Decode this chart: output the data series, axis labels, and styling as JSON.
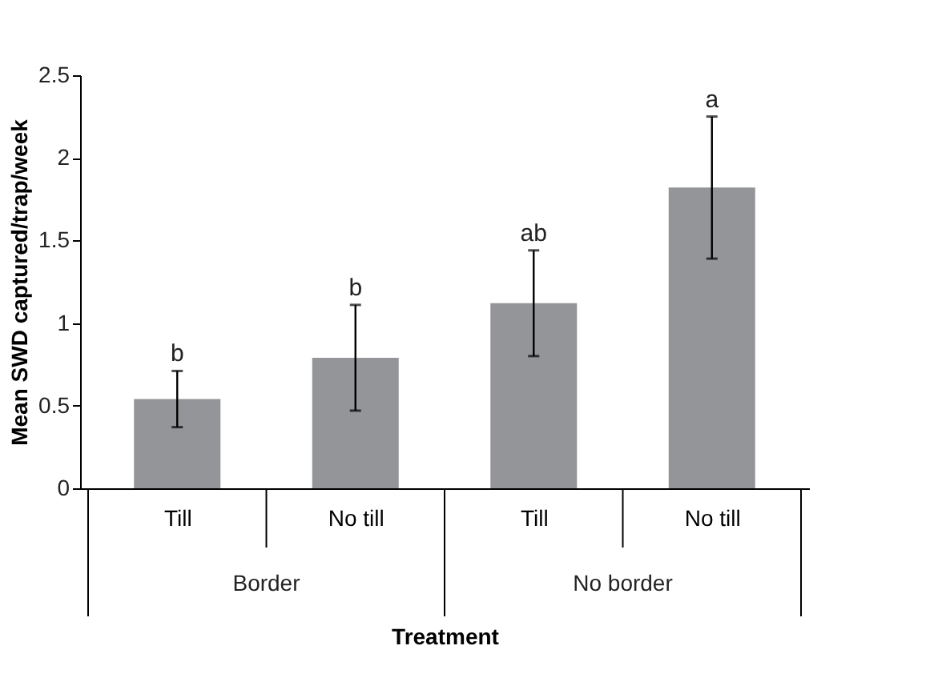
{
  "chart_data": {
    "type": "bar",
    "xlabel": "Treatment",
    "ylabel": "Mean SWD captured/trap/week",
    "categories": [
      "Till",
      "No till",
      "Till",
      "No till"
    ],
    "values": [
      0.54,
      0.79,
      1.12,
      1.82
    ],
    "color": "#939598",
    "errors": [
      [
        0.37,
        0.71
      ],
      [
        0.47,
        1.11
      ],
      [
        0.8,
        1.44
      ],
      [
        1.39,
        2.25
      ]
    ],
    "value_labels": [
      "b",
      "b",
      "ab",
      "a"
    ],
    "annotations": [
      "Border",
      "No border"
    ],
    "ylim": [
      0,
      2.5
    ],
    "yticks": [
      0,
      0.5,
      1,
      1.5,
      2,
      2.5
    ],
    "grid": false
  }
}
